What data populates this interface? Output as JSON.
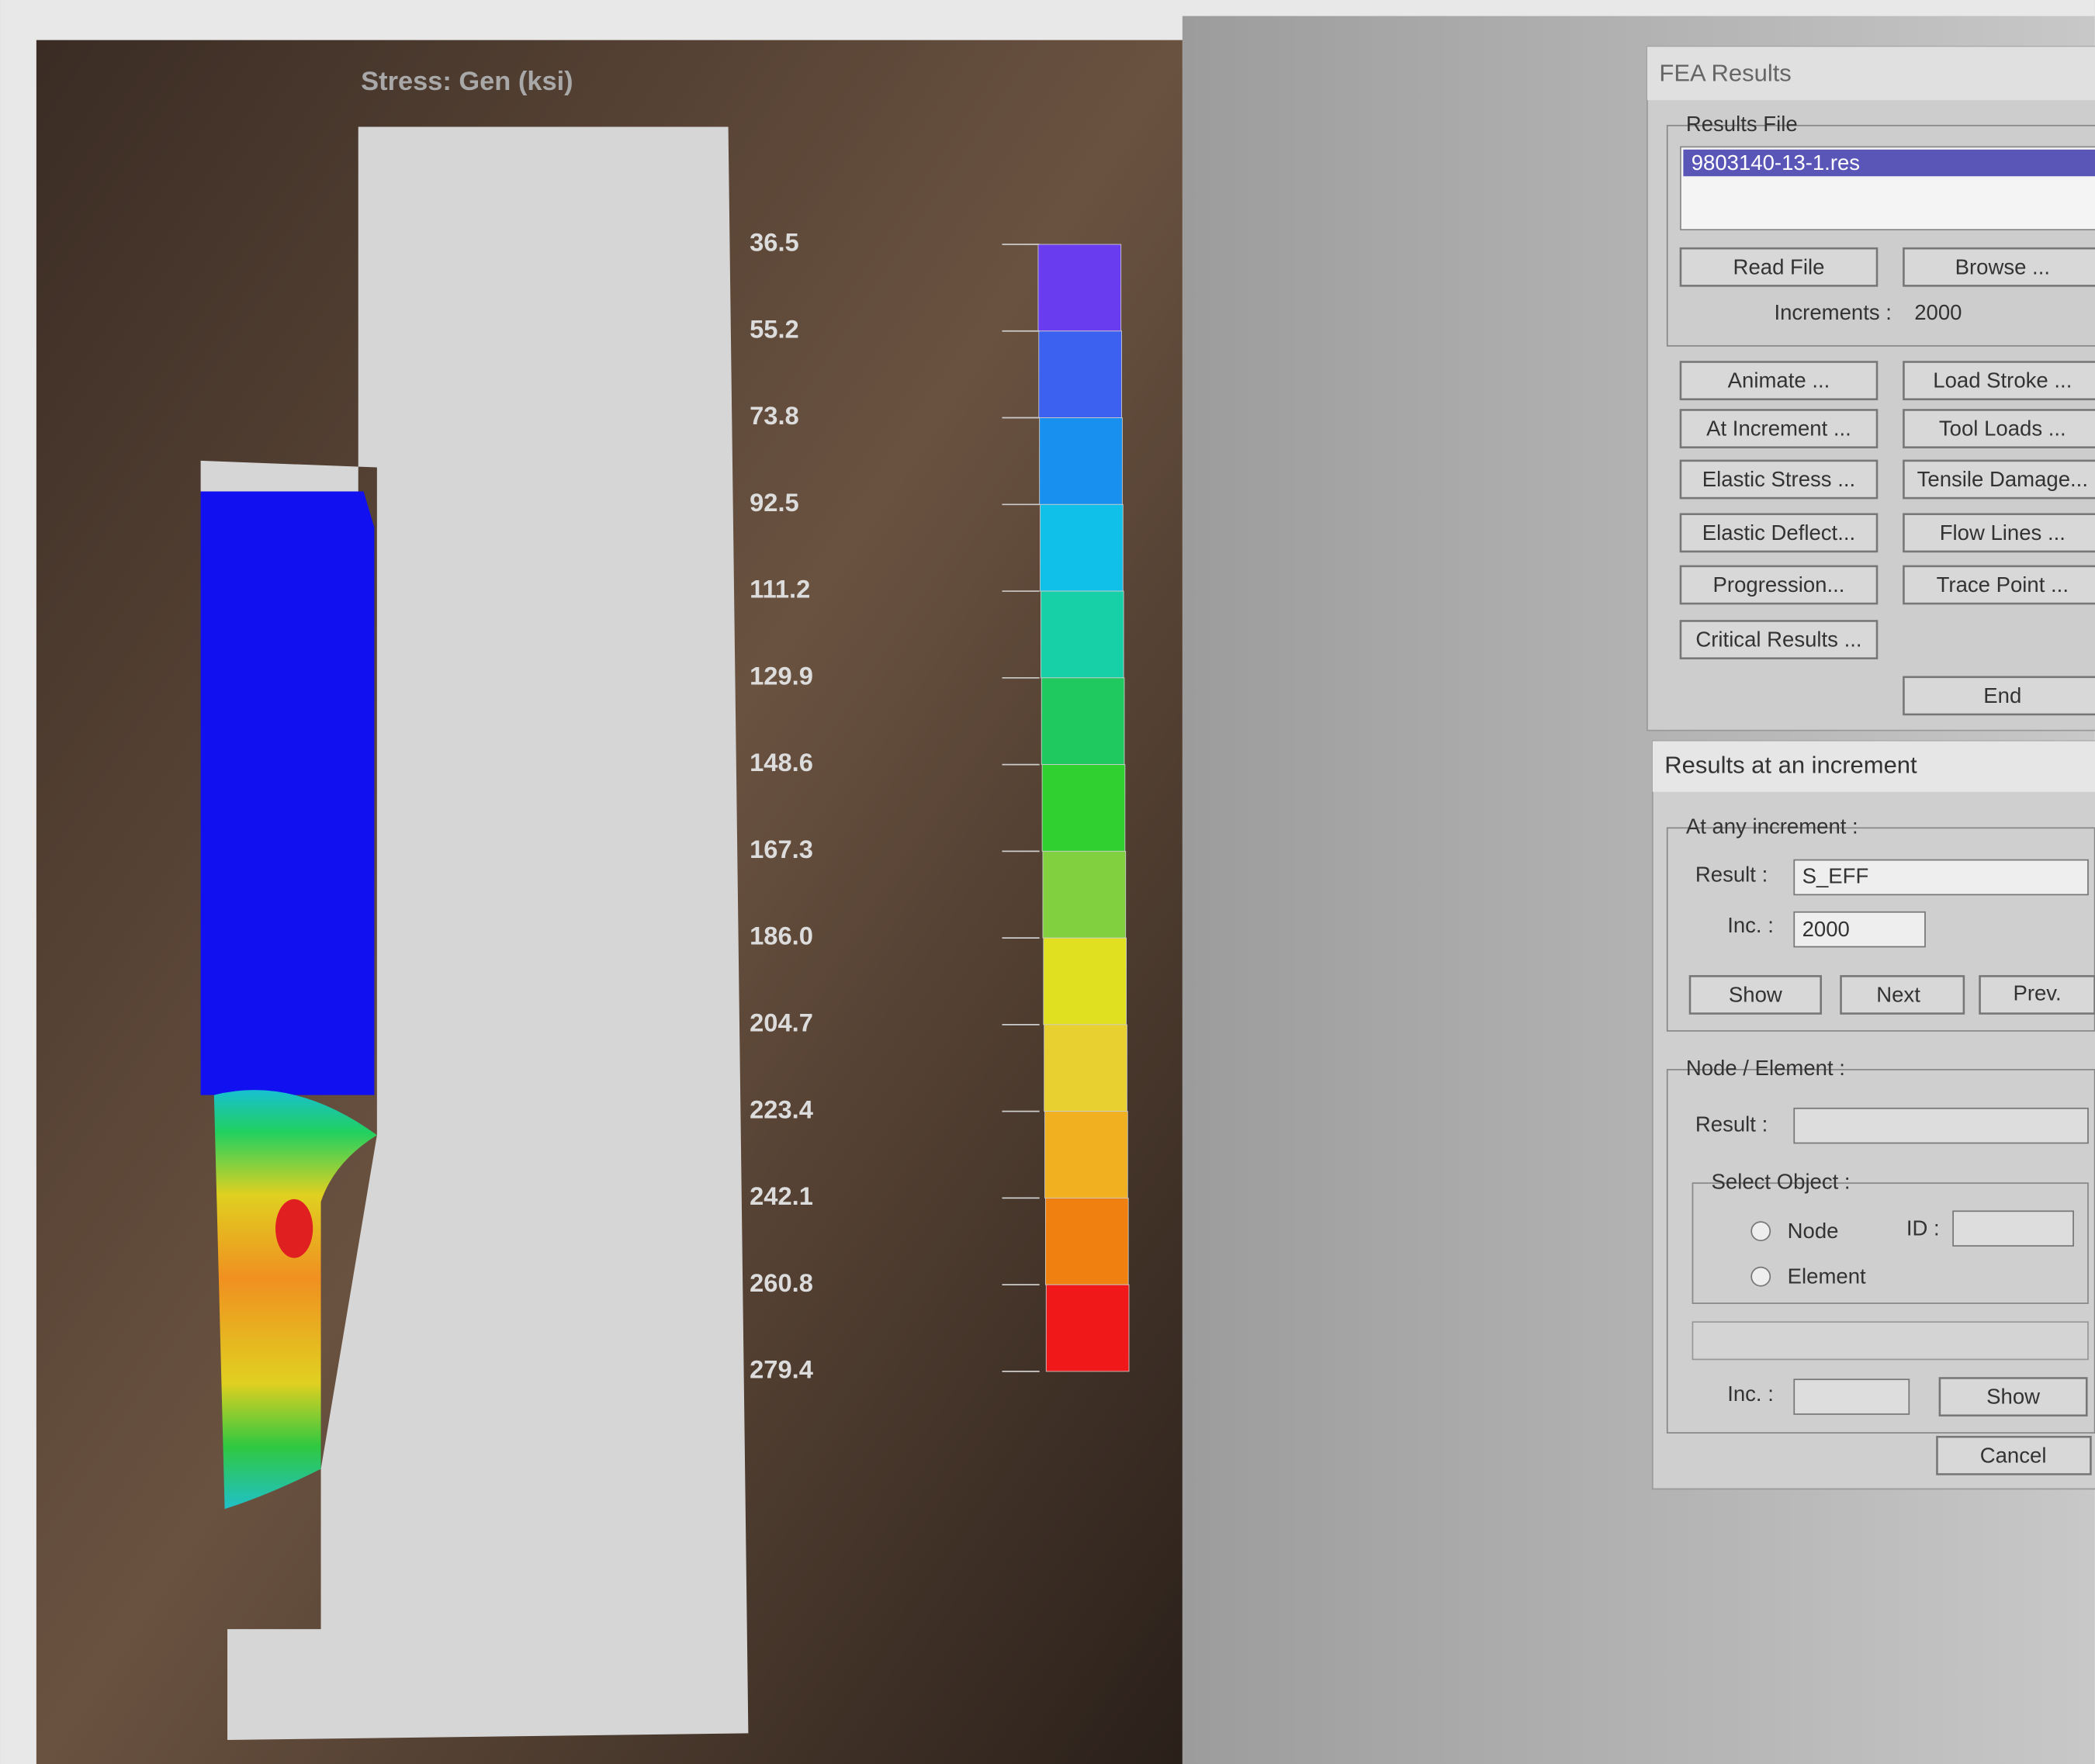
{
  "viewport": {
    "title": "Stress: Gen  (ksi)",
    "legend": [
      "36.5",
      "55.2",
      "73.8",
      "92.5",
      "111.2",
      "129.9",
      "148.6",
      "167.3",
      "186.0",
      "204.7",
      "223.4",
      "242.1",
      "260.8",
      "279.4"
    ]
  },
  "fea_results": {
    "title": "FEA Results",
    "results_file_label": "Results File",
    "selected_file": "9803140-13-1.res",
    "read_file": "Read File",
    "browse": "Browse ...",
    "increments_label": "Increments :",
    "increments": "2000",
    "buttons": [
      [
        "Animate ...",
        "Load Stroke ..."
      ],
      [
        "At Increment ...",
        "Tool Loads ..."
      ],
      [
        "Elastic Stress ...",
        "Tensile Damage..."
      ],
      [
        "Elastic Deflect...",
        "Flow Lines ..."
      ],
      [
        "Progression...",
        "Trace Point ..."
      ],
      [
        "Critical Results ...",
        null
      ]
    ],
    "end": "End"
  },
  "results_at_increment": {
    "title": "Results at an increment",
    "group1": "At any increment :",
    "result_label": "Result :",
    "result_value": "S_EFF",
    "inc_label": "Inc. :",
    "inc_value": "2000",
    "show": "Show",
    "next": "Next",
    "prev": "Prev.",
    "group2": "Node / Element :",
    "result_label2": "Result :",
    "select_object": "Select Object :",
    "node": "Node",
    "element": "Element",
    "id_label": "ID :",
    "inc_label2": "Inc. :",
    "show2": "Show",
    "cancel": "Cancel"
  }
}
